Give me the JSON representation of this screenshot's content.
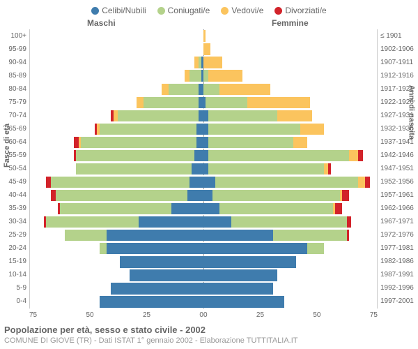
{
  "legend": [
    {
      "label": "Celibi/Nubili",
      "color": "#3f7cad"
    },
    {
      "label": "Coniugati/e",
      "color": "#b4d28b"
    },
    {
      "label": "Vedovi/e",
      "color": "#fbc45e"
    },
    {
      "label": "Divorziati/e",
      "color": "#d2232a"
    }
  ],
  "header": {
    "male": "Maschi",
    "female": "Femmine"
  },
  "y_left_title": "Fasce di età",
  "y_right_title": "Anni di nascita",
  "age_labels": [
    "100+",
    "95-99",
    "90-94",
    "85-89",
    "80-84",
    "75-79",
    "70-74",
    "65-69",
    "60-64",
    "55-59",
    "50-54",
    "45-49",
    "40-44",
    "35-39",
    "30-34",
    "25-29",
    "20-24",
    "15-19",
    "10-14",
    "5-9",
    "0-4"
  ],
  "birth_labels": [
    "≤ 1901",
    "1902-1906",
    "1907-1911",
    "1912-1916",
    "1917-1921",
    "1922-1926",
    "1927-1931",
    "1932-1936",
    "1937-1941",
    "1942-1946",
    "1947-1951",
    "1952-1956",
    "1957-1961",
    "1962-1966",
    "1967-1971",
    "1972-1976",
    "1977-1981",
    "1982-1986",
    "1987-1991",
    "1992-1996",
    "1997-2001"
  ],
  "x_axis": {
    "max": 75,
    "ticks_left": [
      "75",
      "50",
      "25",
      "0"
    ],
    "ticks_right": [
      "0",
      "25",
      "50",
      "75"
    ]
  },
  "colors": {
    "celibi": "#3f7cad",
    "coniugati": "#b4d28b",
    "vedovi": "#fbc45e",
    "divorziati": "#d2232a",
    "grid": "#cccccc",
    "text": "#666666"
  },
  "rows": [
    {
      "m": {
        "c": 0,
        "co": 0,
        "v": 0,
        "d": 0
      },
      "f": {
        "c": 0,
        "co": 0,
        "v": 1,
        "d": 0
      }
    },
    {
      "m": {
        "c": 0,
        "co": 0,
        "v": 0,
        "d": 0
      },
      "f": {
        "c": 0,
        "co": 0,
        "v": 3,
        "d": 0
      }
    },
    {
      "m": {
        "c": 1,
        "co": 1,
        "v": 2,
        "d": 0
      },
      "f": {
        "c": 0,
        "co": 0,
        "v": 8,
        "d": 0
      }
    },
    {
      "m": {
        "c": 1,
        "co": 5,
        "v": 2,
        "d": 0
      },
      "f": {
        "c": 0,
        "co": 2,
        "v": 15,
        "d": 0
      }
    },
    {
      "m": {
        "c": 2,
        "co": 13,
        "v": 3,
        "d": 0
      },
      "f": {
        "c": 0,
        "co": 7,
        "v": 22,
        "d": 0
      }
    },
    {
      "m": {
        "c": 2,
        "co": 24,
        "v": 3,
        "d": 0
      },
      "f": {
        "c": 1,
        "co": 18,
        "v": 27,
        "d": 0
      }
    },
    {
      "m": {
        "c": 2,
        "co": 35,
        "v": 2,
        "d": 1
      },
      "f": {
        "c": 2,
        "co": 30,
        "v": 15,
        "d": 0
      }
    },
    {
      "m": {
        "c": 3,
        "co": 42,
        "v": 1,
        "d": 1
      },
      "f": {
        "c": 2,
        "co": 40,
        "v": 10,
        "d": 0
      }
    },
    {
      "m": {
        "c": 3,
        "co": 50,
        "v": 1,
        "d": 2
      },
      "f": {
        "c": 2,
        "co": 37,
        "v": 6,
        "d": 0
      }
    },
    {
      "m": {
        "c": 4,
        "co": 51,
        "v": 0,
        "d": 1
      },
      "f": {
        "c": 2,
        "co": 61,
        "v": 4,
        "d": 2
      }
    },
    {
      "m": {
        "c": 5,
        "co": 50,
        "v": 0,
        "d": 0
      },
      "f": {
        "c": 2,
        "co": 50,
        "v": 2,
        "d": 1
      }
    },
    {
      "m": {
        "c": 6,
        "co": 60,
        "v": 0,
        "d": 2
      },
      "f": {
        "c": 5,
        "co": 62,
        "v": 3,
        "d": 2
      }
    },
    {
      "m": {
        "c": 7,
        "co": 57,
        "v": 0,
        "d": 2
      },
      "f": {
        "c": 4,
        "co": 55,
        "v": 1,
        "d": 3
      }
    },
    {
      "m": {
        "c": 14,
        "co": 48,
        "v": 0,
        "d": 1
      },
      "f": {
        "c": 7,
        "co": 49,
        "v": 1,
        "d": 3
      }
    },
    {
      "m": {
        "c": 28,
        "co": 40,
        "v": 0,
        "d": 1
      },
      "f": {
        "c": 12,
        "co": 50,
        "v": 0,
        "d": 2
      }
    },
    {
      "m": {
        "c": 42,
        "co": 18,
        "v": 0,
        "d": 0
      },
      "f": {
        "c": 30,
        "co": 32,
        "v": 0,
        "d": 1
      }
    },
    {
      "m": {
        "c": 42,
        "co": 3,
        "v": 0,
        "d": 0
      },
      "f": {
        "c": 45,
        "co": 7,
        "v": 0,
        "d": 0
      }
    },
    {
      "m": {
        "c": 36,
        "co": 0,
        "v": 0,
        "d": 0
      },
      "f": {
        "c": 40,
        "co": 0,
        "v": 0,
        "d": 0
      }
    },
    {
      "m": {
        "c": 32,
        "co": 0,
        "v": 0,
        "d": 0
      },
      "f": {
        "c": 32,
        "co": 0,
        "v": 0,
        "d": 0
      }
    },
    {
      "m": {
        "c": 40,
        "co": 0,
        "v": 0,
        "d": 0
      },
      "f": {
        "c": 30,
        "co": 0,
        "v": 0,
        "d": 0
      }
    },
    {
      "m": {
        "c": 45,
        "co": 0,
        "v": 0,
        "d": 0
      },
      "f": {
        "c": 35,
        "co": 0,
        "v": 0,
        "d": 0
      }
    }
  ],
  "footer": {
    "title": "Popolazione per età, sesso e stato civile - 2002",
    "subtitle": "COMUNE DI GIOVE (TR) - Dati ISTAT 1° gennaio 2002 - Elaborazione TUTTITALIA.IT"
  }
}
